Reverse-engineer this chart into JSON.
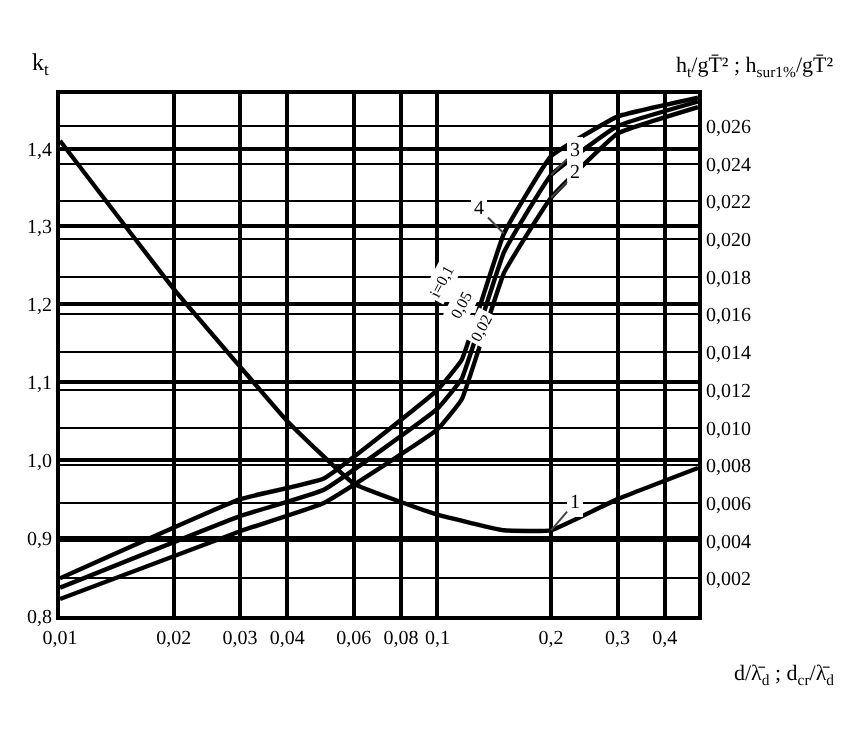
{
  "chart_data": {
    "type": "line",
    "ylabel": "k$_{t}$",
    "y2label": "h$_{t}$/gT̄² ; h$_{sur1%}$/gT̄²",
    "xlabel": "d/λ̄$_{d}$ ; d$_{cr}$/λ̄$_{d}$",
    "log": "x",
    "xlim": [
      0.01,
      0.49
    ],
    "xticks": [
      {
        "value": 0.01,
        "label": "0,01"
      },
      {
        "value": 0.02,
        "label": "0,02"
      },
      {
        "value": 0.03,
        "label": "0,03"
      },
      {
        "value": 0.04,
        "label": "0,04"
      },
      {
        "value": 0.06,
        "label": "0,06"
      },
      {
        "value": 0.08,
        "label": "0,08"
      },
      {
        "value": 0.1,
        "label": "0,1"
      },
      {
        "value": 0.2,
        "label": "0,2"
      },
      {
        "value": 0.3,
        "label": "0,3"
      },
      {
        "value": 0.4,
        "label": "0,4"
      }
    ],
    "ylim": [
      0.8,
      1.47
    ],
    "yticks": [
      {
        "value": 0.8,
        "label": "0,8"
      },
      {
        "value": 0.9,
        "label": "0,9"
      },
      {
        "value": 1.0,
        "label": "1,0"
      },
      {
        "value": 1.1,
        "label": "1,1"
      },
      {
        "value": 1.2,
        "label": "1,2"
      },
      {
        "value": 1.3,
        "label": "1,3"
      },
      {
        "value": 1.4,
        "label": "1,4"
      }
    ],
    "y2lim": [
      0,
      0.0277
    ],
    "y2ticks": [
      {
        "value": 0.002,
        "label": "0,002"
      },
      {
        "value": 0.004,
        "label": "0,004"
      },
      {
        "value": 0.006,
        "label": "0,006"
      },
      {
        "value": 0.008,
        "label": "0,008"
      },
      {
        "value": 0.01,
        "label": "0,010"
      },
      {
        "value": 0.012,
        "label": "0,012"
      },
      {
        "value": 0.014,
        "label": "0,014"
      },
      {
        "value": 0.016,
        "label": "0,016"
      },
      {
        "value": 0.018,
        "label": "0,018"
      },
      {
        "value": 0.02,
        "label": "0,020"
      },
      {
        "value": 0.022,
        "label": "0,022"
      },
      {
        "value": 0.024,
        "label": "0,024"
      },
      {
        "value": 0.026,
        "label": "0,026"
      }
    ],
    "grid": true,
    "legend": false,
    "marker": "none",
    "line_style": "solid",
    "series": [
      {
        "name": "1",
        "color": "#000000",
        "x": [
          0.01,
          0.02,
          0.03,
          0.04,
          0.06,
          0.1,
          0.15,
          0.2,
          0.3,
          0.49
        ],
        "values": [
          1.41,
          1.22,
          1.12,
          1.05,
          0.97,
          0.93,
          0.91,
          0.91,
          0.95,
          0.99
        ]
      },
      {
        "name": "4",
        "color": "#000000",
        "axis": "y2",
        "x": [
          0.01,
          0.03,
          0.05,
          0.1,
          0.116,
          0.15,
          0.2,
          0.3,
          0.49
        ],
        "values": [
          0.002,
          0.0062,
          0.0073,
          0.012,
          0.0136,
          0.0203,
          0.0244,
          0.0265,
          0.0275
        ]
      },
      {
        "name": "3",
        "color": "#000000",
        "axis": "y2",
        "x": [
          0.01,
          0.03,
          0.05,
          0.1,
          0.116,
          0.15,
          0.2,
          0.3,
          0.49
        ],
        "values": [
          0.0015,
          0.0053,
          0.0067,
          0.011,
          0.0126,
          0.0193,
          0.0234,
          0.026,
          0.0273
        ]
      },
      {
        "name": "2",
        "color": "#000000",
        "axis": "y2",
        "x": [
          0.01,
          0.03,
          0.05,
          0.1,
          0.116,
          0.15,
          0.2,
          0.3,
          0.49
        ],
        "values": [
          0.0009,
          0.0045,
          0.006,
          0.0099,
          0.0115,
          0.0182,
          0.0222,
          0.0256,
          0.027
        ]
      }
    ],
    "annotations": [
      "i=0,1",
      "0,05",
      "0,02"
    ]
  }
}
